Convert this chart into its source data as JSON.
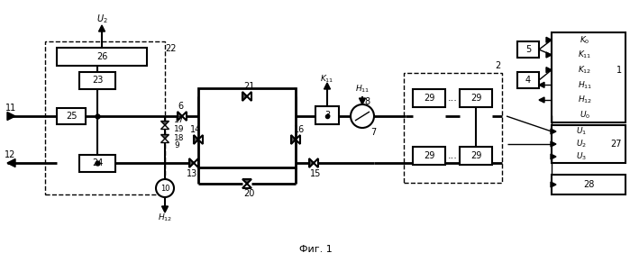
{
  "fig_label": "Фиг. 1",
  "bg_color": "#ffffff",
  "lw_thick": 2.0,
  "lw_med": 1.5,
  "lw_thin": 1.0,
  "lw_dash": 1.0
}
